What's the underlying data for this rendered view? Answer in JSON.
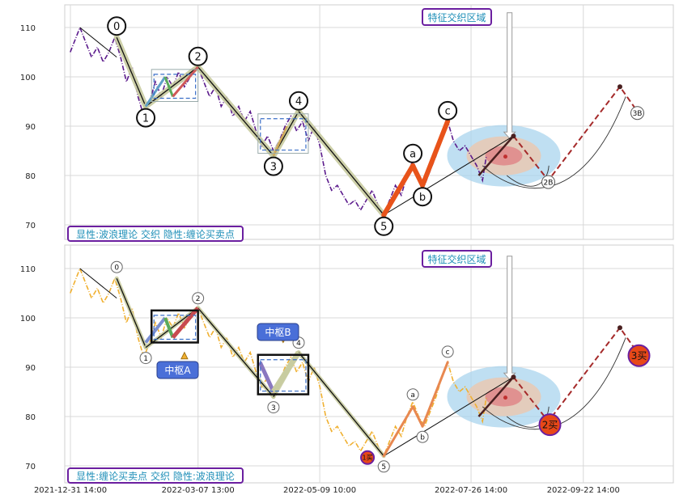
{
  "chart_data": [
    {
      "type": "line",
      "panel": "top",
      "caption": "显性:波浪理论 交织 隐性:缠论买卖点",
      "zone_label": "特征交织区域",
      "ylim": [
        67,
        115
      ],
      "yticks": [
        70,
        80,
        90,
        100,
        110
      ],
      "grid": true,
      "colors": {
        "price": "#5b1a8c",
        "wave_band": "#c8cca0",
        "zigzag": "#111111",
        "wave_a_c": "#e8531a",
        "bracket": "#6b1fa0"
      },
      "price": [
        [
          "2021-12-31",
          105
        ],
        [
          "2022-01-03",
          108
        ],
        [
          "2022-01-05",
          110
        ],
        [
          "2022-01-08",
          107
        ],
        [
          "2022-01-11",
          104
        ],
        [
          "2022-01-14",
          106
        ],
        [
          "2022-01-17",
          103
        ],
        [
          "2022-01-20",
          105
        ],
        [
          "2022-01-23",
          108
        ],
        [
          "2022-01-26",
          104
        ],
        [
          "2022-01-29",
          99
        ],
        [
          "2022-02-01",
          102
        ],
        [
          "2022-02-04",
          96
        ],
        [
          "2022-02-07",
          92
        ],
        [
          "2022-02-10",
          95
        ],
        [
          "2022-02-13",
          99
        ],
        [
          "2022-02-16",
          96
        ],
        [
          "2022-02-19",
          100
        ],
        [
          "2022-02-22",
          98
        ],
        [
          "2022-02-25",
          101
        ],
        [
          "2022-02-28",
          98
        ],
        [
          "2022-03-03",
          100
        ],
        [
          "2022-03-07",
          102
        ],
        [
          "2022-03-10",
          99
        ],
        [
          "2022-03-13",
          96
        ],
        [
          "2022-03-16",
          98
        ],
        [
          "2022-03-19",
          94
        ],
        [
          "2022-03-22",
          96
        ],
        [
          "2022-03-25",
          92
        ],
        [
          "2022-03-28",
          94
        ],
        [
          "2022-03-31",
          91
        ],
        [
          "2022-04-03",
          93
        ],
        [
          "2022-04-06",
          89
        ],
        [
          "2022-04-09",
          86
        ],
        [
          "2022-04-12",
          88
        ],
        [
          "2022-04-15",
          85
        ],
        [
          "2022-04-18",
          87
        ],
        [
          "2022-04-21",
          90
        ],
        [
          "2022-04-24",
          92
        ],
        [
          "2022-04-27",
          89
        ],
        [
          "2022-04-30",
          91
        ],
        [
          "2022-05-03",
          87
        ],
        [
          "2022-05-06",
          90
        ],
        [
          "2022-05-09",
          86
        ],
        [
          "2022-05-12",
          80
        ],
        [
          "2022-05-15",
          77
        ],
        [
          "2022-05-18",
          78
        ],
        [
          "2022-05-21",
          76
        ],
        [
          "2022-05-24",
          74
        ],
        [
          "2022-05-27",
          75
        ],
        [
          "2022-05-30",
          73
        ],
        [
          "2022-06-02",
          75
        ],
        [
          "2022-06-05",
          77
        ],
        [
          "2022-06-08",
          74
        ],
        [
          "2022-06-11",
          72
        ],
        [
          "2022-06-14",
          75
        ],
        [
          "2022-06-17",
          78
        ],
        [
          "2022-06-20",
          76
        ],
        [
          "2022-06-23",
          80
        ],
        [
          "2022-06-26",
          83
        ],
        [
          "2022-06-29",
          80
        ],
        [
          "2022-07-02",
          78
        ],
        [
          "2022-07-05",
          81
        ],
        [
          "2022-07-08",
          84
        ],
        [
          "2022-07-11",
          88
        ],
        [
          "2022-07-14",
          91
        ],
        [
          "2022-07-17",
          87
        ],
        [
          "2022-07-20",
          85
        ],
        [
          "2022-07-23",
          86
        ],
        [
          "2022-07-26",
          84
        ],
        [
          "2022-07-29",
          82
        ],
        [
          "2022-08-01",
          79
        ],
        [
          "2022-08-03",
          84
        ]
      ],
      "wave_points": [
        {
          "label": "0",
          "date": "2022-01-24",
          "value": 108
        },
        {
          "label": "1",
          "date": "2022-02-08",
          "value": 94
        },
        {
          "label": "2",
          "date": "2022-03-07",
          "value": 102
        },
        {
          "label": "3",
          "date": "2022-04-15",
          "value": 84
        },
        {
          "label": "4",
          "date": "2022-04-28",
          "value": 93
        },
        {
          "label": "5",
          "date": "2022-06-11",
          "value": 72
        },
        {
          "label": "a",
          "date": "2022-06-26",
          "value": 82
        },
        {
          "label": "b",
          "date": "2022-07-01",
          "value": 78
        },
        {
          "label": "c",
          "date": "2022-07-14",
          "value": 91
        }
      ],
      "projection": [
        {
          "label": "",
          "date": "2022-08-17",
          "value": 88
        },
        {
          "label": "2B",
          "date": "2022-09-04",
          "value": 79
        },
        {
          "label": "",
          "date": "2022-10-11",
          "value": 98
        },
        {
          "label": "3B",
          "date": "2022-10-20",
          "value": 93
        }
      ]
    },
    {
      "type": "line",
      "panel": "bottom",
      "caption": "显性:缠论买卖点 交织 隐性:波浪理论",
      "zone_label": "特征交织区域",
      "ylim": [
        67,
        115
      ],
      "yticks": [
        70,
        80,
        90,
        100,
        110
      ],
      "grid": true,
      "colors": {
        "price": "#f0b030",
        "bi_up": "#c84a50",
        "bi_down": "#c8cca0",
        "zigzag": "#111111",
        "wave_a_c": "#e88850",
        "buy_marker": "#e84818",
        "box_label_bg": "#4a6fd8"
      },
      "box_labels": [
        "中枢A",
        "中枢B"
      ],
      "buy_points": [
        {
          "label": "1买",
          "date": "2022-06-08",
          "value": 72
        },
        {
          "label": "2买",
          "date": "2022-09-04",
          "value": 79
        },
        {
          "label": "3买",
          "date": "2022-10-20",
          "value": 93
        }
      ],
      "xticks": [
        "2021-12-31 14:00",
        "2022-03-07 13:00",
        "2022-05-09 10:00",
        "2022-07-26 14:00",
        "2022-09-22 14:00"
      ]
    }
  ]
}
